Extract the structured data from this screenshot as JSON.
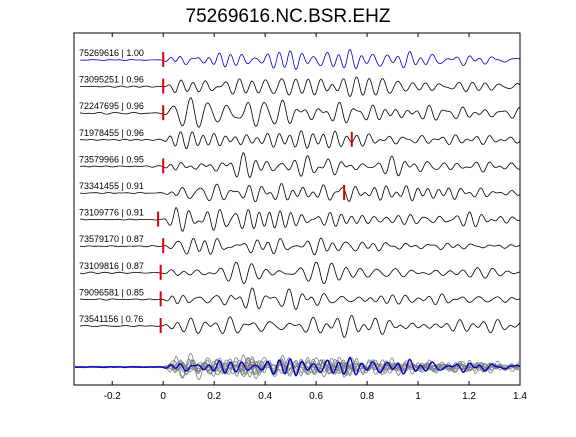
{
  "title": "75269616.NC.BSR.EHZ",
  "chart_data": {
    "type": "line",
    "title": "75269616.NC.BSR.EHZ",
    "xlabel": "",
    "ylabel": "",
    "xlim": [
      -0.35,
      1.4
    ],
    "xticks": [
      -0.2,
      0,
      0.2,
      0.4,
      0.6,
      0.8,
      1,
      1.2,
      1.4
    ],
    "xtick_labels": [
      "-0.2",
      "0",
      "0.2",
      "0.4",
      "0.6",
      "0.8",
      "1",
      "1.2",
      "1.4"
    ],
    "grid": false,
    "colors": {
      "reference": "#0000cc",
      "trace": "#000000",
      "marker": "#dd0000",
      "stack_gray": "#808080"
    },
    "traces": [
      {
        "label": "75269616 | 1.00",
        "pick": 0.0,
        "color": "#0000cc"
      },
      {
        "label": "73095251 | 0.96",
        "pick": 0.0,
        "color": "#000000"
      },
      {
        "label": "72247695 | 0.96",
        "pick": 0.0,
        "color": "#000000"
      },
      {
        "label": "71978455 | 0.96",
        "pick": 0.74,
        "color": "#000000"
      },
      {
        "label": "73579966 | 0.95",
        "pick": 0.0,
        "color": "#000000"
      },
      {
        "label": "73341455 | 0.91",
        "pick": 0.71,
        "color": "#000000"
      },
      {
        "label": "73109776 | 0.91",
        "pick": -0.02,
        "color": "#000000"
      },
      {
        "label": "73579170 | 0.87",
        "pick": 0.0,
        "color": "#000000"
      },
      {
        "label": "73109816 | 0.87",
        "pick": -0.01,
        "color": "#000000"
      },
      {
        "label": "79096581 | 0.85",
        "pick": -0.01,
        "color": "#000000"
      },
      {
        "label": "73541156 | 0.76",
        "pick": -0.01,
        "color": "#000000"
      }
    ],
    "stack": {
      "description_hidden": true,
      "color": "#0000cc",
      "overlay_color": "#808080"
    }
  }
}
